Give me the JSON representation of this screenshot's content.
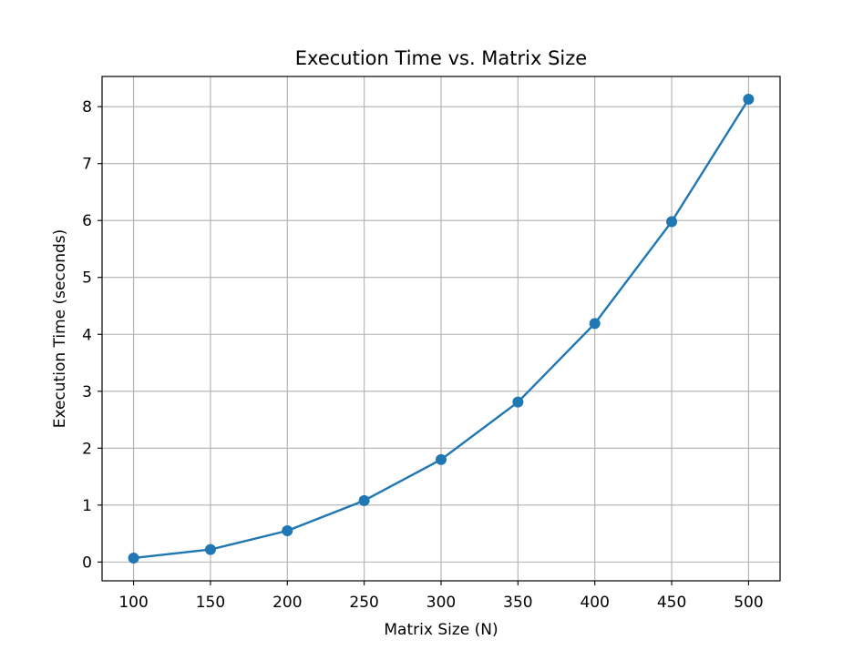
{
  "chart_data": {
    "type": "line",
    "title": "Execution Time vs. Matrix Size",
    "xlabel": "Matrix Size (N)",
    "ylabel": "Execution Time (seconds)",
    "x": [
      100,
      150,
      200,
      250,
      300,
      350,
      400,
      450,
      500
    ],
    "series": [
      {
        "values": [
          0.07,
          0.22,
          0.55,
          1.08,
          1.8,
          2.81,
          4.19,
          5.98,
          8.13
        ],
        "color": "#1f77b4"
      }
    ],
    "xticks": [
      100,
      150,
      200,
      250,
      300,
      350,
      400,
      450,
      500
    ],
    "yticks": [
      0,
      1,
      2,
      3,
      4,
      5,
      6,
      7,
      8
    ],
    "xlim": [
      79.5,
      520.5
    ],
    "ylim": [
      -0.33,
      8.53
    ],
    "grid": true,
    "marker": "circle"
  }
}
